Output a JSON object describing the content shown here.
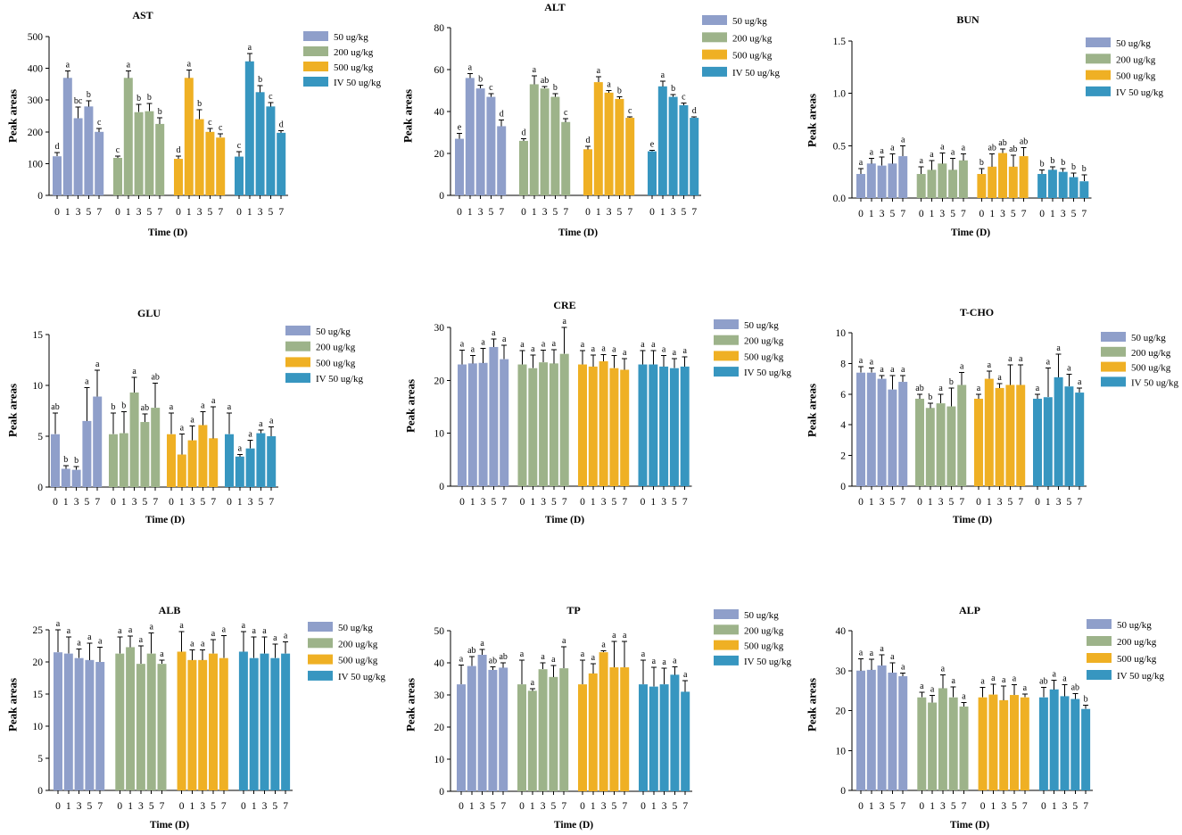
{
  "series_colors": [
    "#8f9fca",
    "#9db38a",
    "#efb024",
    "#3796c0"
  ],
  "chart_data": [
    {
      "type": "bar",
      "title": "AST",
      "xlabel": "Time (D)",
      "ylabel": "Peak areas",
      "ylim": [
        0,
        500
      ],
      "yticks": [
        0,
        100,
        200,
        300,
        400,
        500
      ],
      "ytick_labels": [
        "0",
        "100",
        "200",
        "300",
        "400",
        "500"
      ],
      "categories": [
        "0",
        "1",
        "3",
        "5",
        "7"
      ],
      "series": [
        {
          "name": "50 ug/kg",
          "values": [
            123,
            370,
            243,
            280,
            200
          ],
          "errors": [
            12,
            22,
            35,
            18,
            10
          ],
          "letters": [
            "d",
            "a",
            "bc",
            "b",
            "c"
          ]
        },
        {
          "name": "200 ug/kg",
          "values": [
            118,
            370,
            262,
            265,
            225
          ],
          "errors": [
            5,
            22,
            25,
            25,
            20
          ],
          "letters": [
            "c",
            "a",
            "b",
            "b",
            "b"
          ]
        },
        {
          "name": "500 ug/kg",
          "values": [
            115,
            370,
            240,
            200,
            182
          ],
          "errors": [
            8,
            25,
            30,
            10,
            12
          ],
          "letters": [
            "d",
            "a",
            "b",
            "c",
            "c"
          ]
        },
        {
          "name": "IV 50 ug/kg",
          "values": [
            122,
            422,
            325,
            280,
            197
          ],
          "errors": [
            15,
            25,
            20,
            12,
            6
          ],
          "letters": [
            "c",
            "a",
            "b",
            "c",
            "d"
          ]
        }
      ]
    },
    {
      "type": "bar",
      "title": "ALT",
      "xlabel": "Time (D)",
      "ylabel": "Peak areas",
      "ylim": [
        0,
        80
      ],
      "yticks": [
        0,
        20,
        40,
        60,
        80
      ],
      "ytick_labels": [
        "0",
        "20",
        "40",
        "60",
        "80"
      ],
      "categories": [
        "0",
        "1",
        "3",
        "5",
        "7"
      ],
      "series": [
        {
          "name": "50 ug/kg",
          "values": [
            27,
            56,
            51,
            47,
            33
          ],
          "errors": [
            2.5,
            2,
            1.5,
            1.5,
            3
          ],
          "letters": [
            "e",
            "a",
            "b",
            "c",
            "d"
          ]
        },
        {
          "name": "200 ug/kg",
          "values": [
            26,
            53,
            51,
            47,
            35
          ],
          "errors": [
            1,
            4,
            1,
            1.5,
            1.5
          ],
          "letters": [
            "d",
            "a",
            "ab",
            "b",
            "c"
          ]
        },
        {
          "name": "500 ug/kg",
          "values": [
            22,
            54,
            49,
            46,
            37
          ],
          "errors": [
            1.5,
            2.5,
            1,
            1,
            0.5
          ],
          "letters": [
            "d",
            "a",
            "a",
            "b",
            "c"
          ]
        },
        {
          "name": "IV 50 ug/kg",
          "values": [
            21,
            52,
            47,
            43,
            37
          ],
          "errors": [
            0.5,
            2.5,
            1,
            1,
            0.5
          ],
          "letters": [
            "e",
            "a",
            "b",
            "c",
            "d"
          ]
        }
      ]
    },
    {
      "type": "bar",
      "title": "BUN",
      "xlabel": "Time (D)",
      "ylabel": "Peak areas",
      "ylim": [
        0,
        1.5
      ],
      "yticks": [
        0,
        0.5,
        1.0,
        1.5
      ],
      "ytick_labels": [
        "0.0",
        "0.5",
        "1.0",
        "1.5"
      ],
      "categories": [
        "0",
        "1",
        "3",
        "5",
        "7"
      ],
      "series": [
        {
          "name": "50 ug/kg",
          "values": [
            0.23,
            0.33,
            0.31,
            0.33,
            0.4
          ],
          "errors": [
            0.05,
            0.05,
            0.08,
            0.09,
            0.1
          ],
          "letters": [
            "a",
            "a",
            "a",
            "a",
            "a"
          ]
        },
        {
          "name": "200 ug/kg",
          "values": [
            0.23,
            0.27,
            0.33,
            0.27,
            0.36
          ],
          "errors": [
            0.07,
            0.09,
            0.1,
            0.11,
            0.06
          ],
          "letters": [
            "a",
            "a",
            "a",
            "a",
            "a"
          ]
        },
        {
          "name": "500 ug/kg",
          "values": [
            0.23,
            0.3,
            0.43,
            0.3,
            0.4
          ],
          "errors": [
            0.05,
            0.12,
            0.04,
            0.11,
            0.08
          ],
          "letters": [
            "b",
            "ab",
            "ab",
            "ab",
            "ab"
          ]
        },
        {
          "name": "IV 50 ug/kg",
          "values": [
            0.23,
            0.27,
            0.25,
            0.2,
            0.16
          ],
          "errors": [
            0.04,
            0.03,
            0.03,
            0.04,
            0.06
          ],
          "letters": [
            "b",
            "b",
            "b",
            "b",
            "b"
          ]
        }
      ]
    },
    {
      "type": "bar",
      "title": "GLU",
      "xlabel": "Time (D)",
      "ylabel": "Peak areas",
      "ylim": [
        0,
        15
      ],
      "yticks": [
        0,
        5,
        10,
        15
      ],
      "ytick_labels": [
        "0",
        "5",
        "10",
        "15"
      ],
      "categories": [
        "0",
        "1",
        "3",
        "5",
        "7"
      ],
      "series": [
        {
          "name": "50 ug/kg",
          "values": [
            5.2,
            1.8,
            1.7,
            6.5,
            8.9
          ],
          "errors": [
            2.1,
            0.3,
            0.3,
            3.3,
            2.6
          ],
          "letters": [
            "ab",
            "b",
            "b",
            "a",
            "a"
          ]
        },
        {
          "name": "200 ug/kg",
          "values": [
            5.2,
            5.3,
            9.3,
            6.4,
            7.8
          ],
          "errors": [
            2.1,
            2.1,
            1.5,
            0.8,
            2.4
          ],
          "letters": [
            "b",
            "b",
            "a",
            "ab",
            "ab"
          ]
        },
        {
          "name": "500 ug/kg",
          "values": [
            5.2,
            3.2,
            4.6,
            6.1,
            4.8
          ],
          "errors": [
            2.1,
            2.0,
            1.4,
            1.3,
            3.1
          ],
          "letters": [
            "a",
            "a",
            "a",
            "a",
            "a"
          ]
        },
        {
          "name": "IV 50 ug/kg",
          "values": [
            5.2,
            3.0,
            3.8,
            5.3,
            5.0
          ],
          "errors": [
            2.1,
            0.2,
            0.8,
            0.3,
            0.9
          ],
          "letters": [
            "a",
            "a",
            "a",
            "a",
            "a"
          ]
        }
      ]
    },
    {
      "type": "bar",
      "title": "CRE",
      "xlabel": "Time (D)",
      "ylabel": "Peak areas",
      "ylim": [
        0,
        30
      ],
      "yticks": [
        0,
        10,
        20,
        30
      ],
      "ytick_labels": [
        "0",
        "10",
        "20",
        "30"
      ],
      "categories": [
        "0",
        "1",
        "3",
        "5",
        "7"
      ],
      "series": [
        {
          "name": "50 ug/kg",
          "values": [
            23,
            23.2,
            23.3,
            26.3,
            24
          ],
          "errors": [
            2.7,
            1.5,
            2.7,
            1.5,
            2.6
          ],
          "letters": [
            "a",
            "a",
            "a",
            "a",
            "a"
          ]
        },
        {
          "name": "200 ug/kg",
          "values": [
            23,
            22.3,
            23.4,
            23.2,
            25
          ],
          "errors": [
            2.6,
            2.5,
            2.3,
            2.6,
            5
          ],
          "letters": [
            "a",
            "a",
            "a",
            "a",
            "a"
          ]
        },
        {
          "name": "500 ug/kg",
          "values": [
            23,
            22.6,
            23.6,
            22.3,
            22
          ],
          "errors": [
            2.6,
            2.2,
            1.3,
            2.4,
            2.1
          ],
          "letters": [
            "a",
            "a",
            "a",
            "a",
            "a"
          ]
        },
        {
          "name": "IV 50 ug/kg",
          "values": [
            23,
            23,
            22.6,
            22.3,
            22.6
          ],
          "errors": [
            2.6,
            2.6,
            2.1,
            1.8,
            1.8
          ],
          "letters": [
            "a",
            "a",
            "a",
            "a",
            "a"
          ]
        }
      ]
    },
    {
      "type": "bar",
      "title": "T-CHO",
      "xlabel": "Time (D)",
      "ylabel": "Peak areas",
      "ylim": [
        0,
        10
      ],
      "yticks": [
        0,
        2,
        4,
        6,
        8,
        10
      ],
      "ytick_labels": [
        "0",
        "2",
        "4",
        "6",
        "8",
        "10"
      ],
      "categories": [
        "0",
        "1",
        "3",
        "5",
        "7"
      ],
      "series": [
        {
          "name": "50 ug/kg",
          "values": [
            7.4,
            7.4,
            7.0,
            6.3,
            6.8
          ],
          "errors": [
            0.4,
            0.3,
            0.2,
            0.9,
            0.4
          ],
          "letters": [
            "a",
            "a",
            "a",
            "a",
            "a"
          ]
        },
        {
          "name": "200 ug/kg",
          "values": [
            5.7,
            5.1,
            5.4,
            5.2,
            6.6
          ],
          "errors": [
            0.3,
            0.3,
            0.6,
            1.2,
            0.8
          ],
          "letters": [
            "ab",
            "b",
            "a",
            "b",
            "a"
          ]
        },
        {
          "name": "500 ug/kg",
          "values": [
            5.7,
            7.0,
            6.4,
            6.6,
            6.6
          ],
          "errors": [
            0.3,
            0.5,
            0.3,
            1.3,
            1.3
          ],
          "letters": [
            "a",
            "a",
            "a",
            "a",
            "a"
          ]
        },
        {
          "name": "IV 50 ug/kg",
          "values": [
            5.7,
            5.8,
            7.1,
            6.5,
            6.1
          ],
          "errors": [
            0.3,
            1.9,
            1.5,
            0.8,
            0.3
          ],
          "letters": [
            "a",
            "a",
            "a",
            "a",
            "a"
          ]
        }
      ]
    },
    {
      "type": "bar",
      "title": "ALB",
      "xlabel": "Time (D)",
      "ylabel": "Peak areas",
      "ylim": [
        0,
        25
      ],
      "yticks": [
        0,
        5,
        10,
        15,
        20,
        25
      ],
      "ytick_labels": [
        "0",
        "5",
        "10",
        "15",
        "20",
        "25"
      ],
      "categories": [
        "0",
        "1",
        "3",
        "5",
        "7"
      ],
      "series": [
        {
          "name": "50 ug/kg",
          "values": [
            21.5,
            21.3,
            20.6,
            20.3,
            20.0
          ],
          "errors": [
            3.5,
            2.6,
            1.4,
            2.6,
            2.3
          ],
          "letters": [
            "a",
            "a",
            "a",
            "a",
            "a"
          ]
        },
        {
          "name": "200 ug/kg",
          "values": [
            21.3,
            22.3,
            19.7,
            21.3,
            19.7
          ],
          "errors": [
            2.6,
            1.7,
            2.8,
            3.2,
            0.6
          ],
          "letters": [
            "a",
            "a",
            "a",
            "a",
            "a"
          ]
        },
        {
          "name": "500 ug/kg",
          "values": [
            21.6,
            20.3,
            20.3,
            21.3,
            20.6
          ],
          "errors": [
            3.1,
            1.6,
            1.6,
            2.2,
            3.5
          ],
          "letters": [
            "a",
            "a",
            "a",
            "a",
            "a"
          ]
        },
        {
          "name": "IV 50 ug/kg",
          "values": [
            21.6,
            20.6,
            21.3,
            20.6,
            21.3
          ],
          "errors": [
            3.1,
            3.3,
            2.6,
            2.2,
            1.8
          ],
          "letters": [
            "a",
            "a",
            "a",
            "a",
            "a"
          ]
        }
      ]
    },
    {
      "type": "bar",
      "title": "TP",
      "xlabel": "Time (D)",
      "ylabel": "Peak areas",
      "ylim": [
        0,
        50
      ],
      "yticks": [
        0,
        10,
        20,
        30,
        40,
        50
      ],
      "ytick_labels": [
        "0",
        "10",
        "20",
        "30",
        "40",
        "50"
      ],
      "categories": [
        "0",
        "1",
        "3",
        "5",
        "7"
      ],
      "series": [
        {
          "name": "50 ug/kg",
          "values": [
            33.3,
            39,
            42.5,
            37.8,
            38.5
          ],
          "errors": [
            6,
            3,
            1.7,
            1,
            1.5
          ],
          "letters": [
            "a",
            "ab",
            "a",
            "ab",
            "ab"
          ]
        },
        {
          "name": "200 ug/kg",
          "values": [
            33.3,
            31.3,
            38,
            35.6,
            38.3
          ],
          "errors": [
            7.5,
            0.6,
            2,
            3.5,
            6.7
          ],
          "letters": [
            "a",
            "a",
            "a",
            "a",
            "a"
          ]
        },
        {
          "name": "500 ug/kg",
          "values": [
            33.3,
            36.7,
            43.3,
            38.6,
            38.6
          ],
          "errors": [
            7.5,
            3,
            0.5,
            8,
            8
          ],
          "letters": [
            "a",
            "a",
            "a",
            "a",
            "a"
          ]
        },
        {
          "name": "IV 50 ug/kg",
          "values": [
            33.3,
            32.6,
            33.3,
            36.3,
            31
          ],
          "errors": [
            7.5,
            6,
            5,
            2.5,
            3.5
          ],
          "letters": [
            "a",
            "a",
            "a",
            "a",
            "a"
          ]
        }
      ]
    },
    {
      "type": "bar",
      "title": "ALP",
      "xlabel": "Time (D)",
      "ylabel": "Peak areas",
      "ylim": [
        0,
        40
      ],
      "yticks": [
        0,
        10,
        20,
        30,
        40
      ],
      "ytick_labels": [
        "0",
        "10",
        "20",
        "30",
        "40"
      ],
      "categories": [
        "0",
        "1",
        "3",
        "5",
        "7"
      ],
      "series": [
        {
          "name": "50 ug/kg",
          "values": [
            30,
            30.2,
            31.3,
            29.5,
            28.6
          ],
          "errors": [
            3,
            2.7,
            2.7,
            2.5,
            0.8
          ],
          "letters": [
            "a",
            "a",
            "a",
            "a",
            "a"
          ]
        },
        {
          "name": "200 ug/kg",
          "values": [
            23.3,
            22,
            25.6,
            23.3,
            21
          ],
          "errors": [
            1.3,
            1.8,
            3.3,
            2.6,
            1
          ],
          "letters": [
            "a",
            "a",
            "a",
            "a",
            "a"
          ]
        },
        {
          "name": "500 ug/kg",
          "values": [
            23.3,
            24,
            22.6,
            23.9,
            23.3
          ],
          "errors": [
            2.5,
            2.6,
            3.6,
            2.6,
            0.8
          ],
          "letters": [
            "a",
            "a",
            "a",
            "a",
            "a"
          ]
        },
        {
          "name": "IV 50 ug/kg",
          "values": [
            23.3,
            25.3,
            23.6,
            22.9,
            20.4
          ],
          "errors": [
            2.5,
            2.3,
            2.9,
            1.3,
            0.9
          ],
          "letters": [
            "ab",
            "a",
            "a",
            "ab",
            "b"
          ]
        }
      ]
    }
  ]
}
